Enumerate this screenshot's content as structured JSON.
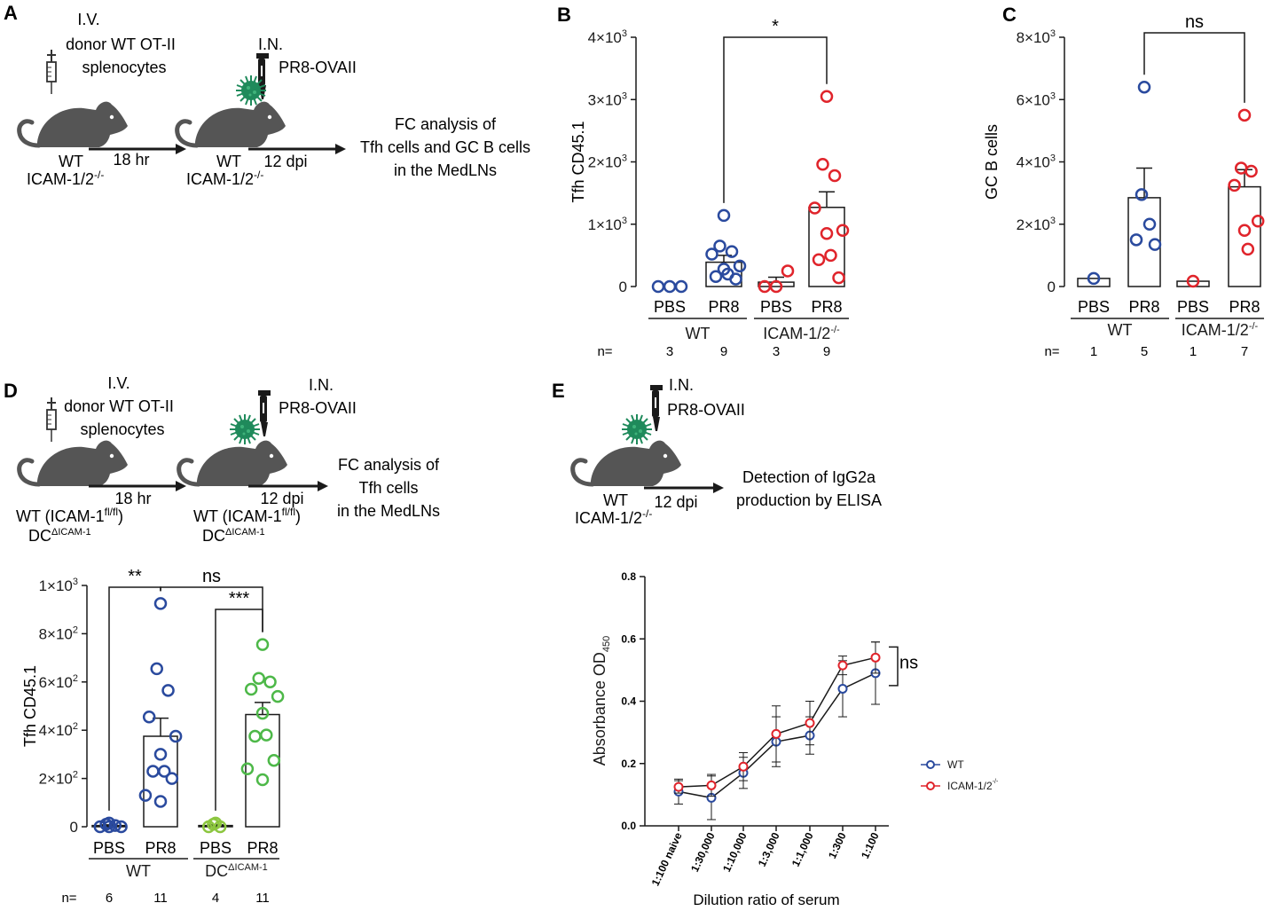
{
  "colors": {
    "wt": "#2a4a9e",
    "icam": "#e0242b",
    "dc": "#4db848",
    "dc_light": "#8cc63f",
    "mouse": "#555555",
    "virus": "#1f8a5b",
    "ink": "#1a1a1a"
  },
  "panels": {
    "A": {
      "letter": "A",
      "iv": "I.V.",
      "donor1": "donor WT OT-II",
      "donor2": "splenocytes",
      "in_label": "I.N.",
      "virus_label": "PR8-OVAII",
      "mouse1_wt": "WT",
      "mouse1_icam": "ICAM-1/2",
      "mouse1_icam_sup": "-/-",
      "arrow1": "18 hr",
      "mouse2_wt": "WT",
      "mouse2_icam": "ICAM-1/2",
      "mouse2_icam_sup": "-/-",
      "arrow2": "12 dpi",
      "result1": "FC analysis of",
      "result2": "Tfh cells and GC B cells",
      "result3": "in the MedLNs"
    },
    "D": {
      "letter": "D",
      "iv": "I.V.",
      "donor1": "donor WT OT-II",
      "donor2": "splenocytes",
      "in_label": "I.N.",
      "virus_label": "PR8-OVAII",
      "mouse1_wt": "WT (ICAM-1",
      "mouse1_wt_sup": "fl/fl",
      "mouse1_wt_end": ")",
      "mouse1_dc": "DC",
      "mouse1_dc_sup": "ΔICAM-1",
      "arrow1": "18 hr",
      "mouse2_wt": "WT (ICAM-1",
      "mouse2_wt_sup": "fl/fl",
      "mouse2_wt_end": ")",
      "mouse2_dc": "DC",
      "mouse2_dc_sup": "ΔICAM-1",
      "arrow2": "12 dpi",
      "result1": "FC analysis of",
      "result2": "Tfh cells",
      "result3": "in the MedLNs"
    },
    "E": {
      "letter": "E",
      "in_label": "I.N.",
      "virus_label": "PR8-OVAII",
      "mouse_wt": "WT",
      "mouse_icam": "ICAM-1/2",
      "mouse_icam_sup": "-/-",
      "arrow": "12 dpi",
      "result1": "Detection of IgG2a",
      "result2": "production by ELISA"
    }
  },
  "chart_data": [
    {
      "id": "B",
      "letter": "B",
      "type": "scatter",
      "ylabel": "Tfh CD45.1",
      "ylim": [
        0,
        4000
      ],
      "yticks": [
        {
          "value": 0,
          "base": "0",
          "exp": ""
        },
        {
          "value": 1000,
          "base": "1×10",
          "exp": "3"
        },
        {
          "value": 2000,
          "base": "2×10",
          "exp": "3"
        },
        {
          "value": 3000,
          "base": "3×10",
          "exp": "3"
        },
        {
          "value": 4000,
          "base": "4×10",
          "exp": "3"
        }
      ],
      "categories": [
        "PBS",
        "PR8",
        "PBS",
        "PR8"
      ],
      "groups": [
        {
          "label": "WT",
          "sup": ""
        },
        {
          "label": "ICAM-1/2",
          "sup": "-/-"
        }
      ],
      "n_label": "n=",
      "n": [
        "3",
        "9",
        "3",
        "9"
      ],
      "series": [
        {
          "name": "WT PBS",
          "color": "wt",
          "mean": 0,
          "sem": 0,
          "points": [
            0,
            0,
            0
          ]
        },
        {
          "name": "WT PR8",
          "color": "wt",
          "mean": 390,
          "sem": 110,
          "points": [
            1140,
            650,
            560,
            520,
            330,
            280,
            200,
            160,
            120
          ]
        },
        {
          "name": "ICAM PBS",
          "color": "icam",
          "mean": 70,
          "sem": 80,
          "points": [
            0,
            0,
            250
          ]
        },
        {
          "name": "ICAM PR8",
          "color": "icam",
          "mean": 1270,
          "sem": 250,
          "points": [
            3050,
            1960,
            1780,
            1260,
            900,
            850,
            500,
            430,
            140
          ]
        }
      ],
      "comparisons": [
        {
          "from": 1,
          "to": 3,
          "label": "*"
        }
      ]
    },
    {
      "id": "C",
      "letter": "C",
      "type": "scatter",
      "ylabel": "GC B cells",
      "ylim": [
        0,
        8000
      ],
      "yticks": [
        {
          "value": 0,
          "base": "0",
          "exp": ""
        },
        {
          "value": 2000,
          "base": "2×10",
          "exp": "3"
        },
        {
          "value": 4000,
          "base": "4×10",
          "exp": "3"
        },
        {
          "value": 6000,
          "base": "6×10",
          "exp": "3"
        },
        {
          "value": 8000,
          "base": "8×10",
          "exp": "3"
        }
      ],
      "categories": [
        "PBS",
        "PR8",
        "PBS",
        "PR8"
      ],
      "groups": [
        {
          "label": "WT",
          "sup": ""
        },
        {
          "label": "ICAM-1/2",
          "sup": "-/-"
        }
      ],
      "n_label": "n=",
      "n": [
        "1",
        "5",
        "1",
        "7"
      ],
      "series": [
        {
          "name": "WT PBS",
          "color": "wt",
          "mean": 260,
          "sem": 0,
          "points": [
            260
          ]
        },
        {
          "name": "WT PR8",
          "color": "wt",
          "mean": 2850,
          "sem": 950,
          "points": [
            6400,
            2950,
            2000,
            1500,
            1350
          ]
        },
        {
          "name": "ICAM PBS",
          "color": "icam",
          "mean": 170,
          "sem": 0,
          "points": [
            170
          ]
        },
        {
          "name": "ICAM PR8",
          "color": "icam",
          "mean": 3200,
          "sem": 550,
          "points": [
            5500,
            3800,
            3700,
            3250,
            2100,
            1800,
            1200
          ]
        }
      ],
      "comparisons": [
        {
          "from": 1,
          "to": 3,
          "label": "ns"
        }
      ]
    },
    {
      "id": "D",
      "letter": "",
      "type": "scatter",
      "ylabel": "Tfh CD45.1",
      "ylim": [
        0,
        1000
      ],
      "yticks": [
        {
          "value": 0,
          "base": "0",
          "exp": ""
        },
        {
          "value": 200,
          "base": "2×10",
          "exp": "2"
        },
        {
          "value": 400,
          "base": "4×10",
          "exp": "2"
        },
        {
          "value": 600,
          "base": "6×10",
          "exp": "2"
        },
        {
          "value": 800,
          "base": "8×10",
          "exp": "2"
        },
        {
          "value": 1000,
          "base": "1×10",
          "exp": "3"
        }
      ],
      "categories": [
        "PBS",
        "PR8",
        "PBS",
        "PR8"
      ],
      "groups": [
        {
          "label": "WT",
          "sup": ""
        },
        {
          "label": "DC",
          "sup": "ΔICAM-1"
        }
      ],
      "n_label": "n=",
      "n": [
        "6",
        "11",
        "4",
        "11"
      ],
      "series": [
        {
          "name": "WT PBS",
          "color": "wt",
          "mean": 5,
          "sem": 3,
          "points": [
            15,
            10,
            5,
            0,
            0,
            0
          ]
        },
        {
          "name": "WT PR8",
          "color": "wt",
          "mean": 375,
          "sem": 75,
          "points": [
            925,
            655,
            565,
            455,
            375,
            300,
            230,
            230,
            200,
            130,
            105
          ]
        },
        {
          "name": "DC PBS",
          "color": "dc_light",
          "mean": 5,
          "sem": 3,
          "points": [
            15,
            10,
            0,
            0
          ]
        },
        {
          "name": "DC PR8",
          "color": "dc",
          "mean": 465,
          "sem": 50,
          "points": [
            755,
            615,
            600,
            570,
            540,
            470,
            380,
            375,
            275,
            240,
            195
          ]
        }
      ],
      "comparisons": [
        {
          "from": 0,
          "to": 1,
          "label": "**"
        },
        {
          "from": 1,
          "to": 3,
          "label": "ns"
        },
        {
          "from": 2,
          "to": 3,
          "label": "***"
        }
      ]
    },
    {
      "id": "E",
      "letter": "",
      "type": "line",
      "xlabel": "Dilution ratio of serum",
      "ylabel": "Absorbance OD",
      "ylabel_sub": "450",
      "ylim": [
        0,
        0.8
      ],
      "yticks": [
        "0.0",
        "0.2",
        "0.4",
        "0.6",
        "0.8"
      ],
      "categories": [
        "1:100 naive",
        "1:30,000",
        "1:10,000",
        "1:3,000",
        "1:1,000",
        "1:300",
        "1:100"
      ],
      "series": [
        {
          "name": "WT",
          "sup": "",
          "color": "wt",
          "values": [
            0.11,
            0.09,
            0.17,
            0.27,
            0.29,
            0.44,
            0.49
          ],
          "errors": [
            0.04,
            0.07,
            0.05,
            0.08,
            0.06,
            0.09,
            0.1
          ]
        },
        {
          "name": "ICAM-1/2",
          "sup": "-/-",
          "color": "icam",
          "values": [
            0.125,
            0.13,
            0.19,
            0.295,
            0.33,
            0.515,
            0.54
          ],
          "errors": [
            0.02,
            0.035,
            0.045,
            0.09,
            0.07,
            0.03,
            0.05
          ]
        }
      ],
      "annotation": "ns"
    }
  ]
}
